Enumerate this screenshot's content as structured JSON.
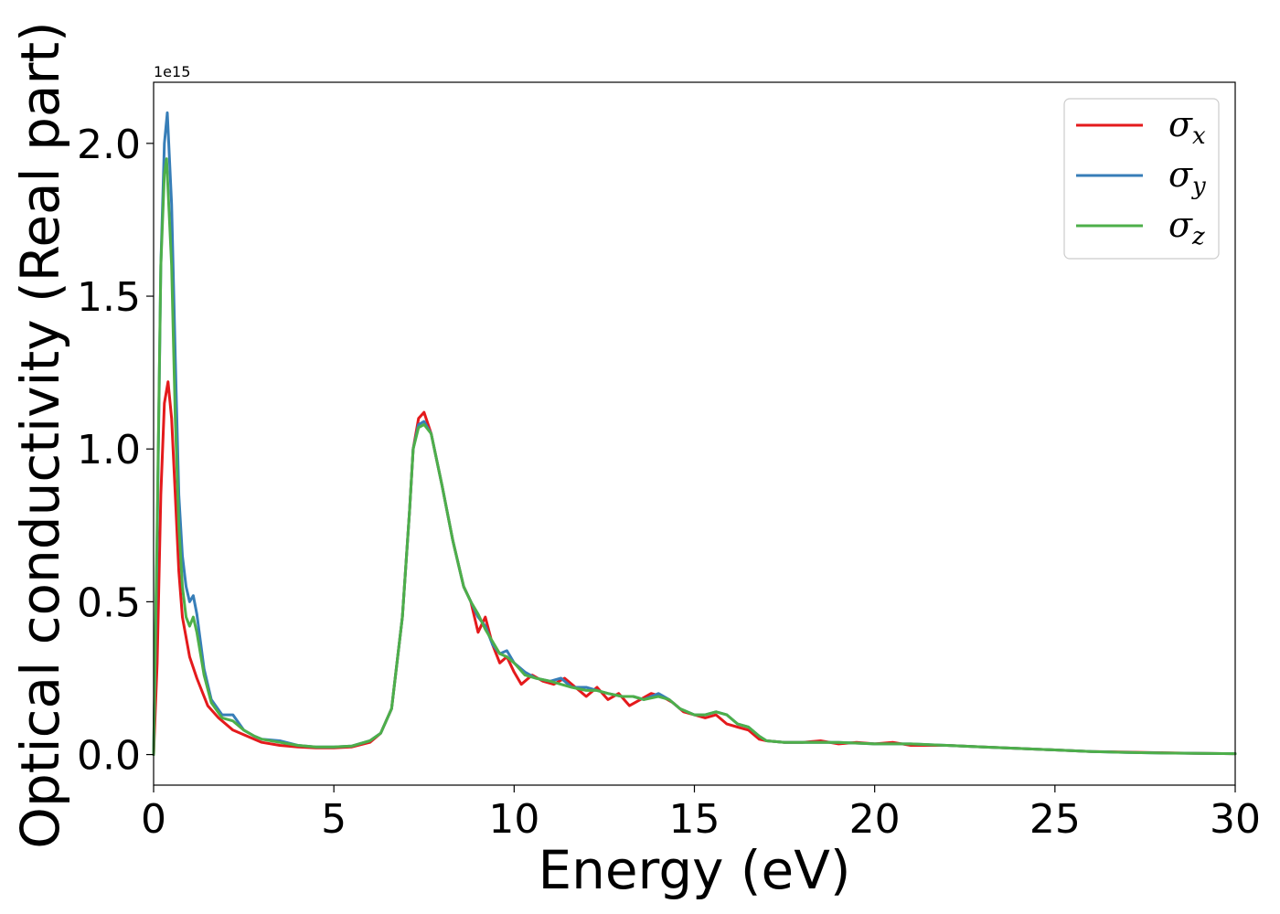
{
  "chart_data": {
    "type": "line",
    "xlabel": "Energy (eV)",
    "ylabel": "Optical conductivity (Real part)",
    "y_offset_label": "1e15",
    "xlim": [
      0,
      30
    ],
    "ylim": [
      -0.1,
      2.2
    ],
    "x_ticks": [
      0,
      5,
      10,
      15,
      20,
      25,
      30
    ],
    "x_tick_labels": [
      "0",
      "5",
      "10",
      "15",
      "20",
      "25",
      "30"
    ],
    "y_ticks": [
      0.0,
      0.5,
      1.0,
      1.5,
      2.0
    ],
    "y_tick_labels": [
      "0.0",
      "0.5",
      "1.0",
      "1.5",
      "2.0"
    ],
    "grid": false,
    "legend_position": "top-right",
    "series": [
      {
        "name": "σx",
        "legend_base": "σ",
        "legend_sub": "x",
        "color": "#e41a1c",
        "x": [
          0,
          0.1,
          0.2,
          0.3,
          0.4,
          0.5,
          0.6,
          0.7,
          0.8,
          1.0,
          1.2,
          1.5,
          1.8,
          2.2,
          2.6,
          3.0,
          3.5,
          4.0,
          4.5,
          5.0,
          5.5,
          6.0,
          6.3,
          6.6,
          6.9,
          7.1,
          7.2,
          7.35,
          7.5,
          7.7,
          8.0,
          8.3,
          8.6,
          8.8,
          9.0,
          9.2,
          9.4,
          9.6,
          9.8,
          10.0,
          10.2,
          10.5,
          10.8,
          11.1,
          11.4,
          11.7,
          12.0,
          12.3,
          12.6,
          12.9,
          13.2,
          13.5,
          13.8,
          14.1,
          14.4,
          14.7,
          15.0,
          15.3,
          15.6,
          15.9,
          16.2,
          16.5,
          16.8,
          17.0,
          17.5,
          18.0,
          18.5,
          19.0,
          19.5,
          20.0,
          20.5,
          21.0,
          22.0,
          23.0,
          24.0,
          25.0,
          26.0,
          27.0,
          28.0,
          29.0,
          30.0
        ],
        "values": [
          0.0,
          0.3,
          0.85,
          1.15,
          1.22,
          1.1,
          0.85,
          0.6,
          0.45,
          0.32,
          0.25,
          0.16,
          0.12,
          0.08,
          0.06,
          0.04,
          0.03,
          0.025,
          0.022,
          0.022,
          0.025,
          0.04,
          0.07,
          0.15,
          0.45,
          0.8,
          1.0,
          1.1,
          1.12,
          1.05,
          0.88,
          0.7,
          0.55,
          0.5,
          0.4,
          0.45,
          0.36,
          0.3,
          0.32,
          0.27,
          0.23,
          0.26,
          0.24,
          0.23,
          0.25,
          0.22,
          0.19,
          0.22,
          0.18,
          0.2,
          0.16,
          0.18,
          0.2,
          0.19,
          0.17,
          0.14,
          0.13,
          0.12,
          0.13,
          0.1,
          0.09,
          0.08,
          0.05,
          0.045,
          0.04,
          0.04,
          0.045,
          0.035,
          0.04,
          0.035,
          0.04,
          0.03,
          0.03,
          0.025,
          0.02,
          0.015,
          0.01,
          0.008,
          0.006,
          0.004,
          0.003
        ]
      },
      {
        "name": "σy",
        "legend_base": "σ",
        "legend_sub": "y",
        "color": "#377eb8",
        "x": [
          0,
          0.1,
          0.2,
          0.3,
          0.38,
          0.5,
          0.6,
          0.7,
          0.8,
          0.9,
          1.0,
          1.1,
          1.2,
          1.4,
          1.6,
          1.9,
          2.2,
          2.5,
          2.8,
          3.0,
          3.5,
          4.0,
          4.5,
          5.0,
          5.5,
          6.0,
          6.3,
          6.6,
          6.9,
          7.1,
          7.2,
          7.35,
          7.5,
          7.7,
          8.0,
          8.3,
          8.6,
          8.8,
          9.0,
          9.2,
          9.4,
          9.6,
          9.8,
          10.0,
          10.3,
          10.6,
          11.0,
          11.3,
          11.6,
          12.0,
          12.3,
          12.6,
          13.0,
          13.3,
          13.6,
          14.0,
          14.3,
          14.6,
          15.0,
          15.3,
          15.6,
          15.9,
          16.2,
          16.5,
          16.8,
          17.0,
          17.5,
          18.0,
          19.0,
          20.0,
          21.0,
          22.0,
          23.0,
          24.0,
          25.0,
          26.0,
          27.0,
          28.0,
          29.0,
          30.0
        ],
        "values": [
          0.0,
          0.7,
          1.6,
          2.0,
          2.1,
          1.8,
          1.3,
          0.85,
          0.65,
          0.55,
          0.5,
          0.52,
          0.46,
          0.28,
          0.18,
          0.13,
          0.13,
          0.08,
          0.06,
          0.05,
          0.045,
          0.03,
          0.025,
          0.025,
          0.028,
          0.045,
          0.07,
          0.15,
          0.45,
          0.8,
          1.0,
          1.08,
          1.09,
          1.05,
          0.88,
          0.7,
          0.55,
          0.5,
          0.45,
          0.42,
          0.36,
          0.33,
          0.34,
          0.3,
          0.27,
          0.25,
          0.24,
          0.25,
          0.22,
          0.22,
          0.21,
          0.2,
          0.19,
          0.19,
          0.18,
          0.2,
          0.18,
          0.15,
          0.13,
          0.13,
          0.14,
          0.13,
          0.1,
          0.09,
          0.06,
          0.045,
          0.04,
          0.04,
          0.04,
          0.035,
          0.035,
          0.03,
          0.025,
          0.02,
          0.015,
          0.01,
          0.007,
          0.005,
          0.004,
          0.003
        ]
      },
      {
        "name": "σz",
        "legend_base": "σ",
        "legend_sub": "z",
        "color": "#4daf4a",
        "x": [
          0,
          0.1,
          0.2,
          0.3,
          0.36,
          0.5,
          0.6,
          0.7,
          0.8,
          0.9,
          1.0,
          1.1,
          1.2,
          1.4,
          1.6,
          1.9,
          2.2,
          2.5,
          2.8,
          3.0,
          3.5,
          4.0,
          4.5,
          5.0,
          5.5,
          6.0,
          6.3,
          6.6,
          6.9,
          7.1,
          7.2,
          7.35,
          7.5,
          7.7,
          8.0,
          8.3,
          8.6,
          8.8,
          9.0,
          9.2,
          9.4,
          9.6,
          9.8,
          10.0,
          10.3,
          10.6,
          11.0,
          11.3,
          11.6,
          12.0,
          12.3,
          12.6,
          13.0,
          13.3,
          13.6,
          14.0,
          14.3,
          14.6,
          15.0,
          15.3,
          15.6,
          15.9,
          16.2,
          16.5,
          16.8,
          17.0,
          17.5,
          18.0,
          19.0,
          20.0,
          21.0,
          22.0,
          23.0,
          24.0,
          25.0,
          26.0,
          27.0,
          28.0,
          29.0,
          30.0
        ],
        "values": [
          0.0,
          0.75,
          1.6,
          1.9,
          1.95,
          1.6,
          1.1,
          0.75,
          0.55,
          0.45,
          0.42,
          0.45,
          0.4,
          0.26,
          0.17,
          0.12,
          0.11,
          0.08,
          0.06,
          0.05,
          0.04,
          0.03,
          0.025,
          0.025,
          0.028,
          0.045,
          0.07,
          0.15,
          0.45,
          0.8,
          1.0,
          1.07,
          1.08,
          1.05,
          0.88,
          0.7,
          0.55,
          0.5,
          0.46,
          0.41,
          0.37,
          0.33,
          0.32,
          0.3,
          0.26,
          0.25,
          0.24,
          0.23,
          0.22,
          0.21,
          0.21,
          0.2,
          0.19,
          0.19,
          0.18,
          0.19,
          0.18,
          0.15,
          0.13,
          0.13,
          0.14,
          0.13,
          0.1,
          0.09,
          0.06,
          0.045,
          0.04,
          0.04,
          0.04,
          0.035,
          0.035,
          0.03,
          0.025,
          0.02,
          0.015,
          0.01,
          0.007,
          0.005,
          0.004,
          0.003
        ]
      }
    ]
  }
}
